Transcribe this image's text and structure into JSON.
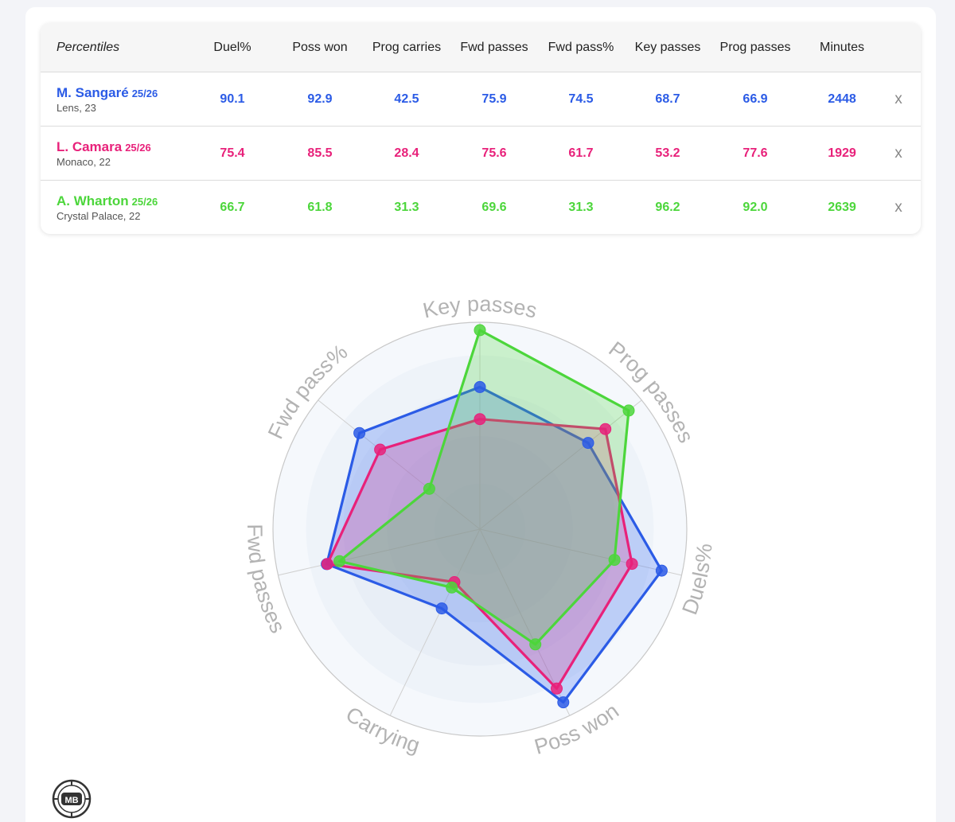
{
  "table": {
    "header": {
      "first": "Percentiles",
      "columns": [
        "Duel%",
        "Poss won",
        "Prog carries",
        "Fwd passes",
        "Fwd pass%",
        "Key passes",
        "Prog passes",
        "Minutes"
      ]
    },
    "players": [
      {
        "name": "M. Sangaré",
        "season": "25/26",
        "club": "Lens, 23",
        "color": "#2b5be6",
        "values": [
          "90.1",
          "92.9",
          "42.5",
          "75.9",
          "74.5",
          "68.7",
          "66.9",
          "2448"
        ],
        "remove": "x"
      },
      {
        "name": "L. Camara",
        "season": "25/26",
        "club": "Monaco, 22",
        "color": "#e8217a",
        "values": [
          "75.4",
          "85.5",
          "28.4",
          "75.6",
          "61.7",
          "53.2",
          "77.6",
          "1929"
        ],
        "remove": "x"
      },
      {
        "name": "A. Wharton",
        "season": "25/26",
        "club": "Crystal Palace, 22",
        "color": "#4cd63b",
        "values": [
          "66.7",
          "61.8",
          "31.3",
          "69.6",
          "31.3",
          "96.2",
          "92.0",
          "2639"
        ],
        "remove": "x"
      }
    ]
  },
  "chart_data": {
    "type": "radar",
    "axes": [
      "Key passes",
      "Prog passes",
      "Duels%",
      "Poss won",
      "Carrying",
      "Fwd passes",
      "Fwd pass%"
    ],
    "range": [
      0,
      100
    ],
    "series": [
      {
        "name": "M. Sangaré",
        "color": "#2b5be6",
        "fill": "rgba(60,110,245,0.28)",
        "values": [
          68.7,
          66.9,
          90.1,
          92.9,
          42.5,
          75.9,
          74.5
        ]
      },
      {
        "name": "L. Camara",
        "color": "#e8217a",
        "fill": "rgba(232,33,122,0.22)",
        "values": [
          53.2,
          77.6,
          75.4,
          85.5,
          28.4,
          75.6,
          61.7
        ]
      },
      {
        "name": "A. Wharton",
        "color": "#4cd63b",
        "fill": "rgba(76,214,59,0.25)",
        "values": [
          96.2,
          92.0,
          66.7,
          61.8,
          31.3,
          69.6,
          31.3
        ]
      }
    ]
  },
  "logo": {
    "text": "MB"
  }
}
